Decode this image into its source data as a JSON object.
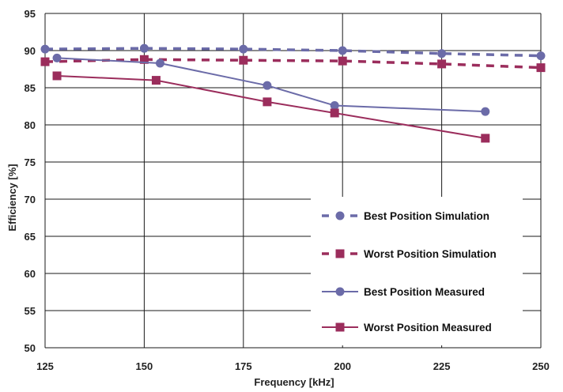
{
  "chart_data": {
    "type": "line",
    "xlabel": "Frequency [kHz]",
    "ylabel": "Efficiency [%]",
    "xlim": [
      125,
      250
    ],
    "ylim": [
      50,
      95
    ],
    "xticks": [
      125,
      150,
      175,
      200,
      225,
      250
    ],
    "yticks": [
      50,
      55,
      60,
      65,
      70,
      75,
      80,
      85,
      90,
      95
    ],
    "grid": true,
    "legend_position": "bottom-right",
    "series": [
      {
        "name": "Best Position Simulation",
        "color": "#6b6ba8",
        "dash": "dashed",
        "marker": "circle",
        "x": [
          125,
          150,
          175,
          200,
          225,
          250
        ],
        "y": [
          90.2,
          90.3,
          90.2,
          90.0,
          89.6,
          89.3
        ]
      },
      {
        "name": "Worst Position Simulation",
        "color": "#9b2d5c",
        "dash": "dashed",
        "marker": "square",
        "x": [
          125,
          150,
          175,
          200,
          225,
          250
        ],
        "y": [
          88.5,
          88.8,
          88.7,
          88.6,
          88.2,
          87.7
        ]
      },
      {
        "name": "Best Position Measured",
        "color": "#6b6ba8",
        "dash": "solid",
        "marker": "circle",
        "x": [
          128,
          154,
          181,
          198,
          236
        ],
        "y": [
          89.0,
          88.3,
          85.3,
          82.6,
          81.8
        ]
      },
      {
        "name": "Worst Position Measured",
        "color": "#9b2d5c",
        "dash": "solid",
        "marker": "square",
        "x": [
          128,
          153,
          181,
          198,
          236
        ],
        "y": [
          86.6,
          86.0,
          83.1,
          81.6,
          78.2
        ]
      }
    ]
  }
}
